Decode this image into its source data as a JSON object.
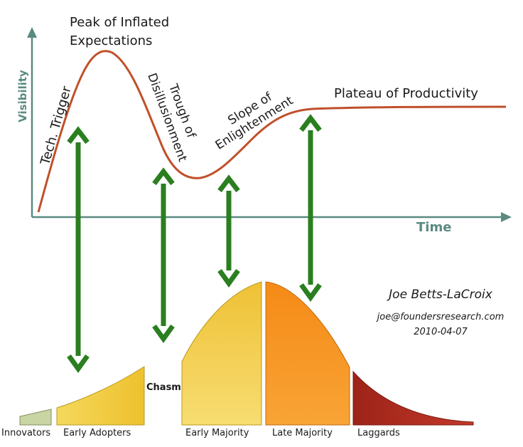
{
  "colors": {
    "axis": "#5a8a80",
    "hype_curve": "#c0502a",
    "arrows": "#2a7f1f",
    "innovators": "#c9d6a3",
    "early_adopters": "#f2cc3c",
    "early_majority": "#f3d54a",
    "late_majority": "#f6931e",
    "laggards": "#a7271c"
  },
  "axes": {
    "y_label": "Visibility",
    "x_label": "Time"
  },
  "hype_phases": {
    "trigger": "Tech. Trigger",
    "peak": "Peak of Inflated Expectations",
    "peak_line1": "Peak of Inflated",
    "peak_line2": "Expectations",
    "trough_line1": "Trough of",
    "trough_line2": "Disillusionment",
    "slope_line1": "Slope of",
    "slope_line2": "Enlightenment",
    "plateau": "Plateau of Productivity"
  },
  "adoption_segments": {
    "innovators": "Innovators",
    "early_adopters": "Early Adopters",
    "chasm": "Chasm",
    "early_majority": "Early Majority",
    "late_majority": "Late Majority",
    "laggards": "Laggards"
  },
  "credit": {
    "author": "Joe Betts-LaCroix",
    "email": "joe@foundersresearch.com",
    "date": "2010-04-07"
  }
}
